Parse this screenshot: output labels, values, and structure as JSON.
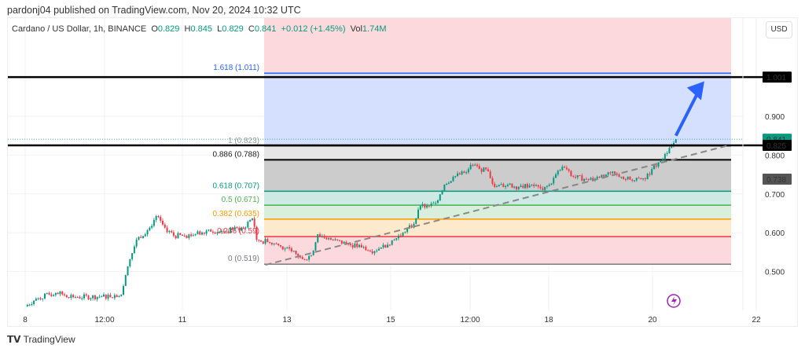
{
  "header": {
    "published": "pardonj04 published on TradingView.com, Nov 20, 2024 10:32 UTC"
  },
  "legend": {
    "symbol": "Cardano / US Dollar, 1h, BINANCE",
    "o_label": "O",
    "o": "0.829",
    "h_label": "H",
    "h": "0.845",
    "l_label": "L",
    "l": "0.829",
    "c_label": "C",
    "c": "0.841",
    "change": "+0.012 (+1.45%)",
    "vol_label": "Vol",
    "vol": "1.74M"
  },
  "currency": "USD",
  "footer": {
    "brand": "TradingView"
  },
  "colors": {
    "up": "#089981",
    "down": "#f23645",
    "accent": "#2962ff"
  },
  "chart_data": {
    "type": "candlestick",
    "price_ticks": [
      "0.900",
      "0.800",
      "0.700",
      "0.600",
      "0.500"
    ],
    "time_ticks": [
      "8",
      "12:00",
      "11",
      "13",
      "15",
      "12:00",
      "18",
      "20",
      "22"
    ],
    "price_labels": {
      "last": "0.841",
      "line_high": "1.001",
      "line_low": "0.825",
      "grey": "0.738"
    },
    "horizontal_lines": [
      1.001,
      0.825
    ],
    "fib_levels": [
      {
        "label": "1.618 (1.011)",
        "price": 1.011,
        "color": "#2962ff"
      },
      {
        "label": "1 (0.823)",
        "price": 0.823,
        "color": "#999999"
      },
      {
        "label": "0.886 (0.788)",
        "price": 0.788,
        "color": "#000000"
      },
      {
        "label": "0.618 (0.707)",
        "price": 0.707,
        "color": "#089981"
      },
      {
        "label": "0.5 (0.671)",
        "price": 0.671,
        "color": "#4caf50"
      },
      {
        "label": "0.382 (0.635)",
        "price": 0.635,
        "color": "#ff9800"
      },
      {
        "label": "0.236 (0.59)",
        "price": 0.59,
        "color": "#f23645"
      },
      {
        "label": "0 (0.519)",
        "price": 0.519,
        "color": "#787b86"
      }
    ],
    "trendline": {
      "from": [
        "Nov 12 14:00",
        0.517
      ],
      "to": [
        "Nov 21 10:00",
        0.825
      ]
    },
    "arrow": {
      "from": [
        "Nov 20 10:00",
        0.85
      ],
      "to": [
        "Nov 20 23:00",
        0.99
      ]
    },
    "closes": [
      [
        "Nov 8 00:00",
        0.41
      ],
      [
        "Nov 8 05:00",
        0.43
      ],
      [
        "Nov 8 14:00",
        0.445
      ],
      [
        "Nov 9 00:00",
        0.434
      ],
      [
        "Nov 9 11:00",
        0.436
      ],
      [
        "Nov 9 20:00",
        0.44
      ],
      [
        "Nov 9 22:00",
        0.491
      ],
      [
        "Nov 10 00:00",
        0.532
      ],
      [
        "Nov 10 03:00",
        0.582
      ],
      [
        "Nov 10 09:00",
        0.613
      ],
      [
        "Nov 10 12:00",
        0.643
      ],
      [
        "Nov 10 16:00",
        0.613
      ],
      [
        "Nov 10 20:00",
        0.592
      ],
      [
        "Nov 11 01:00",
        0.592
      ],
      [
        "Nov 11 06:00",
        0.596
      ],
      [
        "Nov 11 12:00",
        0.608
      ],
      [
        "Nov 11 17:00",
        0.602
      ],
      [
        "Nov 11 23:00",
        0.608
      ],
      [
        "Nov 12 04:00",
        0.613
      ],
      [
        "Nov 12 08:00",
        0.637
      ],
      [
        "Nov 12 10:00",
        0.582
      ],
      [
        "Nov 12 15:00",
        0.576
      ],
      [
        "Nov 12 20:00",
        0.568
      ],
      [
        "Nov 13 02:00",
        0.552
      ],
      [
        "Nov 13 07:00",
        0.532
      ],
      [
        "Nov 13 11:00",
        0.542
      ],
      [
        "Nov 13 14:00",
        0.596
      ],
      [
        "Nov 13 20:00",
        0.582
      ],
      [
        "Nov 14 03:00",
        0.572
      ],
      [
        "Nov 14 10:00",
        0.562
      ],
      [
        "Nov 14 14:00",
        0.552
      ],
      [
        "Nov 14 19:00",
        0.562
      ],
      [
        "Nov 15 01:00",
        0.582
      ],
      [
        "Nov 15 06:00",
        0.602
      ],
      [
        "Nov 15 10:00",
        0.623
      ],
      [
        "Nov 15 13:00",
        0.669
      ],
      [
        "Nov 15 17:00",
        0.669
      ],
      [
        "Nov 15 20:00",
        0.677
      ],
      [
        "Nov 16 00:00",
        0.724
      ],
      [
        "Nov 16 04:00",
        0.744
      ],
      [
        "Nov 16 09:00",
        0.754
      ],
      [
        "Nov 16 12:00",
        0.775
      ],
      [
        "Nov 16 16:00",
        0.764
      ],
      [
        "Nov 16 20:00",
        0.758
      ],
      [
        "Nov 16 23:00",
        0.718
      ],
      [
        "Nov 17 05:00",
        0.724
      ],
      [
        "Nov 17 10:00",
        0.718
      ],
      [
        "Nov 17 16:00",
        0.724
      ],
      [
        "Nov 17 21:00",
        0.71
      ],
      [
        "Nov 18 00:00",
        0.724
      ],
      [
        "Nov 18 06:00",
        0.77
      ],
      [
        "Nov 18 11:00",
        0.744
      ],
      [
        "Nov 18 17:00",
        0.738
      ],
      [
        "Nov 18 22:00",
        0.744
      ],
      [
        "Nov 19 04:00",
        0.754
      ],
      [
        "Nov 19 09:00",
        0.744
      ],
      [
        "Nov 19 14:00",
        0.734
      ],
      [
        "Nov 19 20:00",
        0.738
      ],
      [
        "Nov 19 23:00",
        0.764
      ],
      [
        "Nov 20 03:00",
        0.785
      ],
      [
        "Nov 20 06:00",
        0.805
      ],
      [
        "Nov 20 10:00",
        0.841
      ]
    ]
  }
}
